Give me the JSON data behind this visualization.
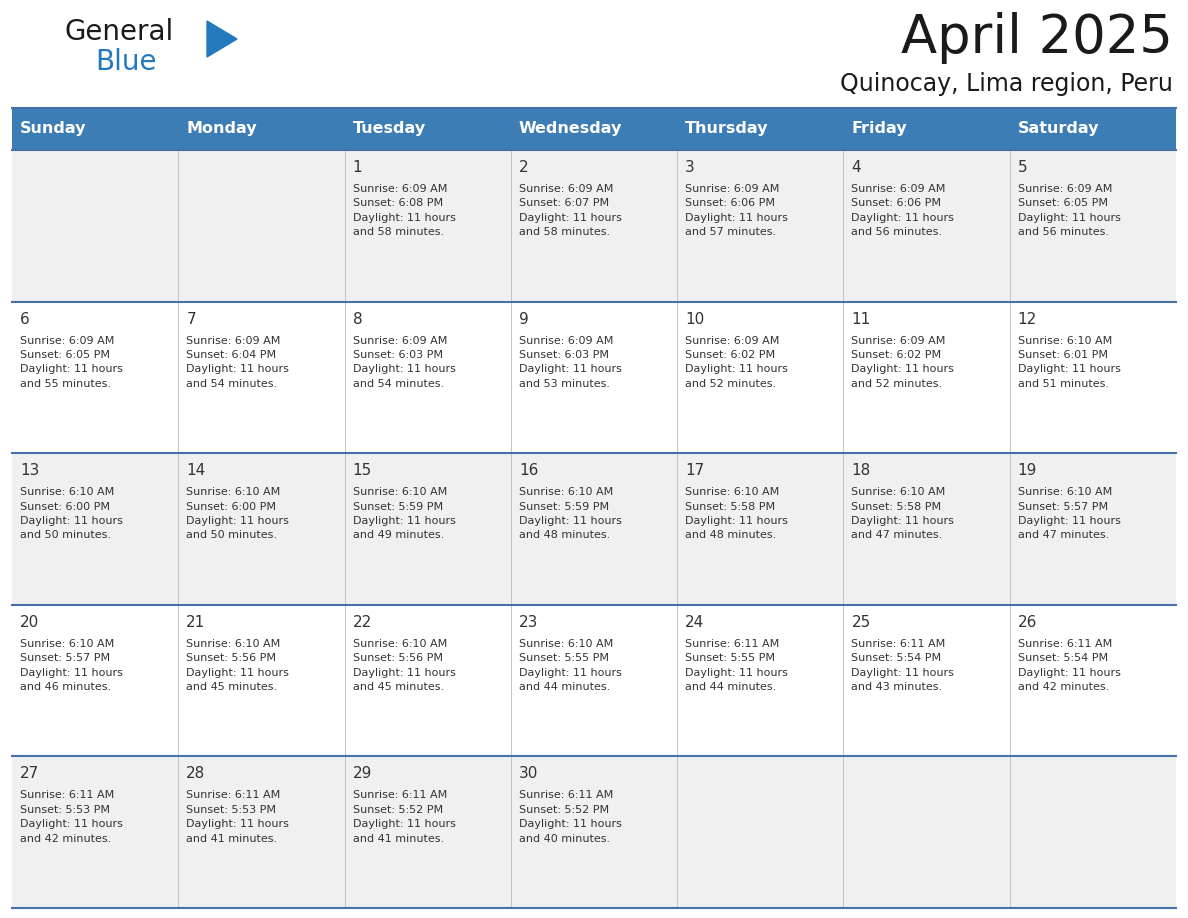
{
  "title": "April 2025",
  "subtitle": "Quinocay, Lima region, Peru",
  "header_bg_color": "#3d7db5",
  "header_text_color": "#ffffff",
  "day_names": [
    "Sunday",
    "Monday",
    "Tuesday",
    "Wednesday",
    "Thursday",
    "Friday",
    "Saturday"
  ],
  "row_bg_colors": [
    "#f0f0f0",
    "#ffffff"
  ],
  "grid_line_color": "#4472a8",
  "text_color": "#333333",
  "title_color": "#1a1a1a",
  "subtitle_color": "#1a1a1a",
  "logo_general_color": "#1a1a1a",
  "logo_blue_color": "#2478be",
  "calendar_data": [
    [
      {
        "day": null,
        "text": ""
      },
      {
        "day": null,
        "text": ""
      },
      {
        "day": 1,
        "text": "Sunrise: 6:09 AM\nSunset: 6:08 PM\nDaylight: 11 hours\nand 58 minutes."
      },
      {
        "day": 2,
        "text": "Sunrise: 6:09 AM\nSunset: 6:07 PM\nDaylight: 11 hours\nand 58 minutes."
      },
      {
        "day": 3,
        "text": "Sunrise: 6:09 AM\nSunset: 6:06 PM\nDaylight: 11 hours\nand 57 minutes."
      },
      {
        "day": 4,
        "text": "Sunrise: 6:09 AM\nSunset: 6:06 PM\nDaylight: 11 hours\nand 56 minutes."
      },
      {
        "day": 5,
        "text": "Sunrise: 6:09 AM\nSunset: 6:05 PM\nDaylight: 11 hours\nand 56 minutes."
      }
    ],
    [
      {
        "day": 6,
        "text": "Sunrise: 6:09 AM\nSunset: 6:05 PM\nDaylight: 11 hours\nand 55 minutes."
      },
      {
        "day": 7,
        "text": "Sunrise: 6:09 AM\nSunset: 6:04 PM\nDaylight: 11 hours\nand 54 minutes."
      },
      {
        "day": 8,
        "text": "Sunrise: 6:09 AM\nSunset: 6:03 PM\nDaylight: 11 hours\nand 54 minutes."
      },
      {
        "day": 9,
        "text": "Sunrise: 6:09 AM\nSunset: 6:03 PM\nDaylight: 11 hours\nand 53 minutes."
      },
      {
        "day": 10,
        "text": "Sunrise: 6:09 AM\nSunset: 6:02 PM\nDaylight: 11 hours\nand 52 minutes."
      },
      {
        "day": 11,
        "text": "Sunrise: 6:09 AM\nSunset: 6:02 PM\nDaylight: 11 hours\nand 52 minutes."
      },
      {
        "day": 12,
        "text": "Sunrise: 6:10 AM\nSunset: 6:01 PM\nDaylight: 11 hours\nand 51 minutes."
      }
    ],
    [
      {
        "day": 13,
        "text": "Sunrise: 6:10 AM\nSunset: 6:00 PM\nDaylight: 11 hours\nand 50 minutes."
      },
      {
        "day": 14,
        "text": "Sunrise: 6:10 AM\nSunset: 6:00 PM\nDaylight: 11 hours\nand 50 minutes."
      },
      {
        "day": 15,
        "text": "Sunrise: 6:10 AM\nSunset: 5:59 PM\nDaylight: 11 hours\nand 49 minutes."
      },
      {
        "day": 16,
        "text": "Sunrise: 6:10 AM\nSunset: 5:59 PM\nDaylight: 11 hours\nand 48 minutes."
      },
      {
        "day": 17,
        "text": "Sunrise: 6:10 AM\nSunset: 5:58 PM\nDaylight: 11 hours\nand 48 minutes."
      },
      {
        "day": 18,
        "text": "Sunrise: 6:10 AM\nSunset: 5:58 PM\nDaylight: 11 hours\nand 47 minutes."
      },
      {
        "day": 19,
        "text": "Sunrise: 6:10 AM\nSunset: 5:57 PM\nDaylight: 11 hours\nand 47 minutes."
      }
    ],
    [
      {
        "day": 20,
        "text": "Sunrise: 6:10 AM\nSunset: 5:57 PM\nDaylight: 11 hours\nand 46 minutes."
      },
      {
        "day": 21,
        "text": "Sunrise: 6:10 AM\nSunset: 5:56 PM\nDaylight: 11 hours\nand 45 minutes."
      },
      {
        "day": 22,
        "text": "Sunrise: 6:10 AM\nSunset: 5:56 PM\nDaylight: 11 hours\nand 45 minutes."
      },
      {
        "day": 23,
        "text": "Sunrise: 6:10 AM\nSunset: 5:55 PM\nDaylight: 11 hours\nand 44 minutes."
      },
      {
        "day": 24,
        "text": "Sunrise: 6:11 AM\nSunset: 5:55 PM\nDaylight: 11 hours\nand 44 minutes."
      },
      {
        "day": 25,
        "text": "Sunrise: 6:11 AM\nSunset: 5:54 PM\nDaylight: 11 hours\nand 43 minutes."
      },
      {
        "day": 26,
        "text": "Sunrise: 6:11 AM\nSunset: 5:54 PM\nDaylight: 11 hours\nand 42 minutes."
      }
    ],
    [
      {
        "day": 27,
        "text": "Sunrise: 6:11 AM\nSunset: 5:53 PM\nDaylight: 11 hours\nand 42 minutes."
      },
      {
        "day": 28,
        "text": "Sunrise: 6:11 AM\nSunset: 5:53 PM\nDaylight: 11 hours\nand 41 minutes."
      },
      {
        "day": 29,
        "text": "Sunrise: 6:11 AM\nSunset: 5:52 PM\nDaylight: 11 hours\nand 41 minutes."
      },
      {
        "day": 30,
        "text": "Sunrise: 6:11 AM\nSunset: 5:52 PM\nDaylight: 11 hours\nand 40 minutes."
      },
      {
        "day": null,
        "text": ""
      },
      {
        "day": null,
        "text": ""
      },
      {
        "day": null,
        "text": ""
      }
    ]
  ]
}
